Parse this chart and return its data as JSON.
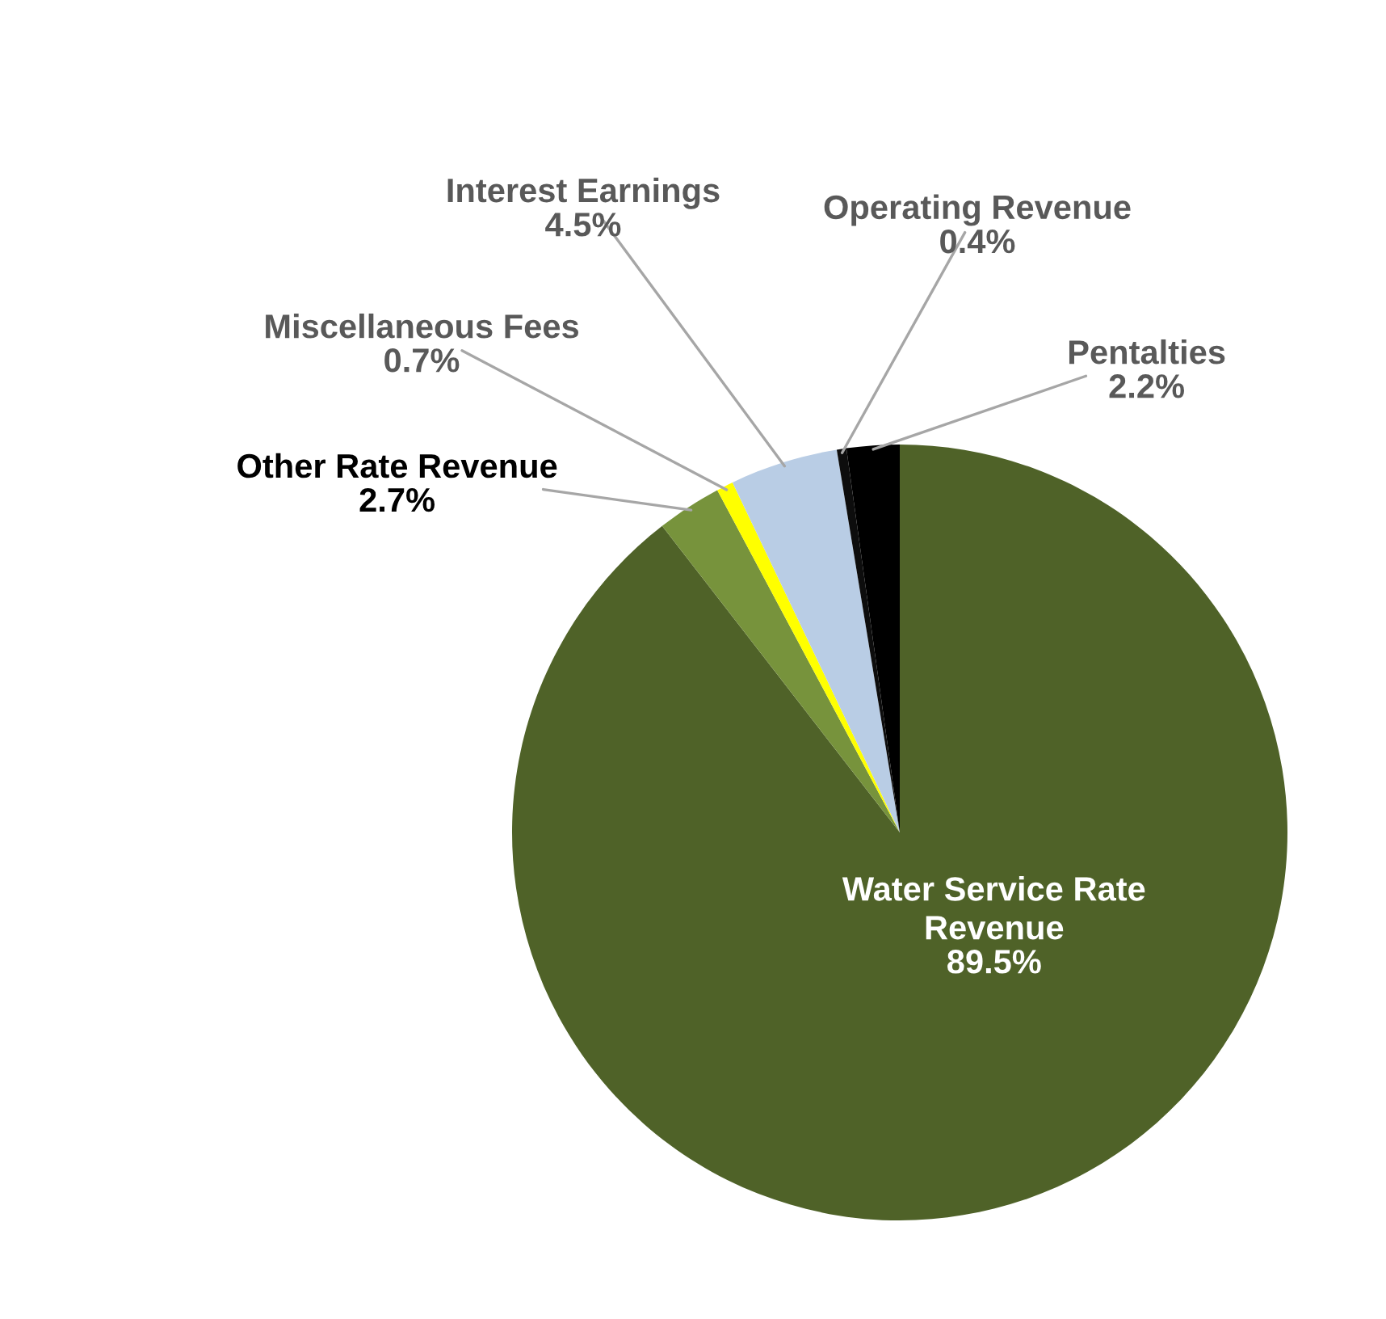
{
  "chart_data": {
    "type": "pie",
    "categories": [
      "Water Service Rate\nRevenue",
      "Other Rate Revenue",
      "Miscellaneous Fees",
      "Interest Earnings",
      "Operating Revenue",
      "Pentalties"
    ],
    "values": [
      89.5,
      2.7,
      0.7,
      4.5,
      0.4,
      2.2
    ],
    "value_labels": [
      "89.5%",
      "2.7%",
      "0.7%",
      "4.5%",
      "0.4%",
      "2.2%"
    ],
    "colors": [
      "#4f6228",
      "#77933c",
      "#ffff00",
      "#b9cde5",
      "#0d0d0d",
      "#000000"
    ],
    "legend": false
  }
}
